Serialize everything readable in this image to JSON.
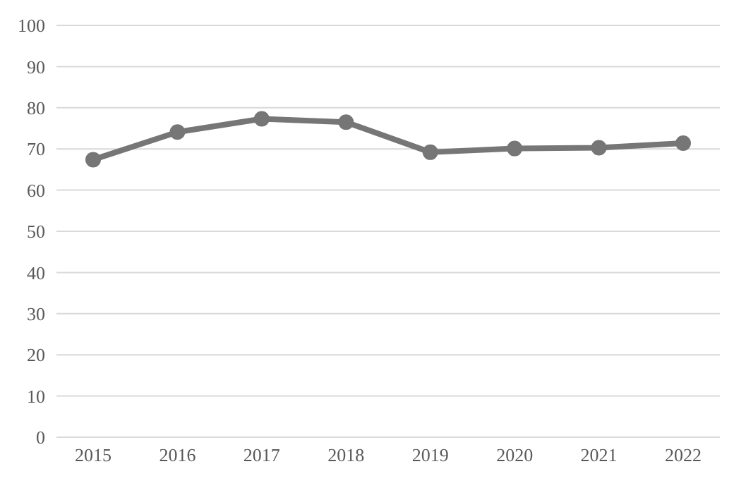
{
  "chart_data": {
    "type": "line",
    "categories": [
      "2015",
      "2016",
      "2017",
      "2018",
      "2019",
      "2020",
      "2021",
      "2022"
    ],
    "series": [
      {
        "color": "#767676",
        "values": [
          67.4,
          74.1,
          77.3,
          76.5,
          69.2,
          70.1,
          70.3,
          71.4
        ]
      }
    ],
    "ylim": [
      0,
      100
    ],
    "yticks": [
      0,
      10,
      20,
      30,
      40,
      50,
      60,
      70,
      80,
      90,
      100
    ],
    "grid": "y",
    "marker": "circle",
    "legend": false
  }
}
